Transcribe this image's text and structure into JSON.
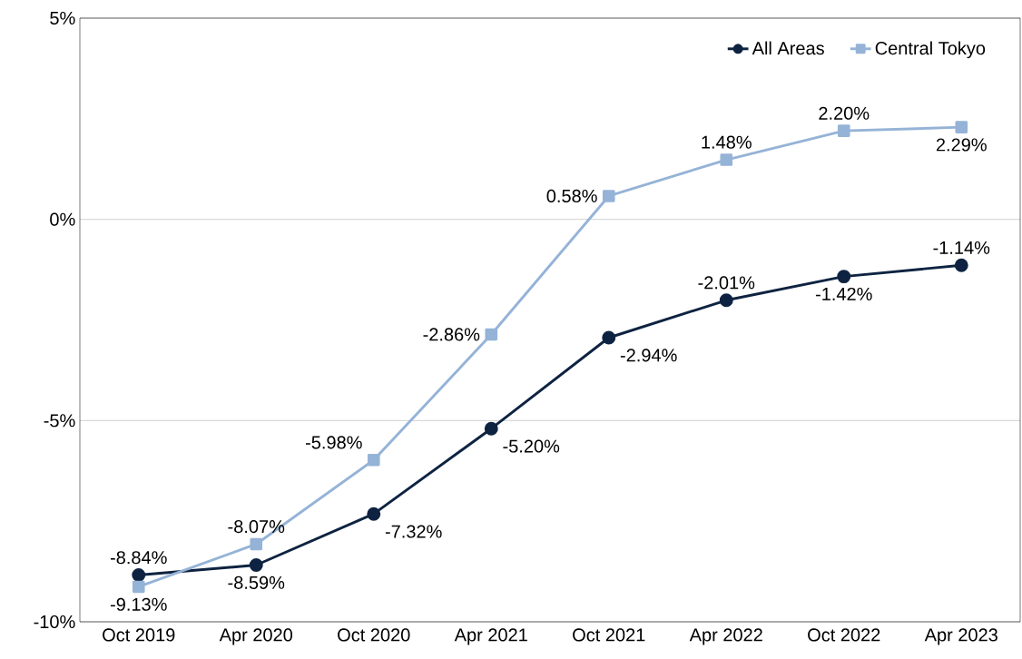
{
  "chart_data": {
    "type": "line",
    "categories": [
      "Oct 2019",
      "Apr 2020",
      "Oct 2020",
      "Apr 2021",
      "Oct 2021",
      "Apr 2022",
      "Oct 2022",
      "Apr 2023"
    ],
    "series": [
      {
        "name": "All Areas",
        "color": "#0e2341",
        "marker": "circle",
        "values": [
          -8.84,
          -8.59,
          -7.32,
          -5.2,
          -2.94,
          -2.01,
          -1.42,
          -1.14
        ],
        "value_labels": [
          "-8.84%",
          "-8.59%",
          "-7.32%",
          "-5.20%",
          "-2.94%",
          "-2.01%",
          "-1.42%",
          "-1.14%"
        ]
      },
      {
        "name": "Central Tokyo",
        "color": "#95b3d7",
        "marker": "square",
        "values": [
          -9.13,
          -8.07,
          -5.98,
          -2.86,
          0.58,
          1.48,
          2.2,
          2.29
        ],
        "value_labels": [
          "-9.13%",
          "-8.07%",
          "-5.98%",
          "-2.86%",
          "0.58%",
          "1.48%",
          "2.20%",
          "2.29%"
        ]
      }
    ],
    "ylim": [
      -10,
      5
    ],
    "yticks": [
      {
        "value": -10,
        "label": "-10%"
      },
      {
        "value": -5,
        "label": "-5%"
      },
      {
        "value": 0,
        "label": "0%"
      },
      {
        "value": 5,
        "label": "5%"
      }
    ],
    "grid": "y",
    "legend": "top right",
    "line_style": "solid"
  }
}
